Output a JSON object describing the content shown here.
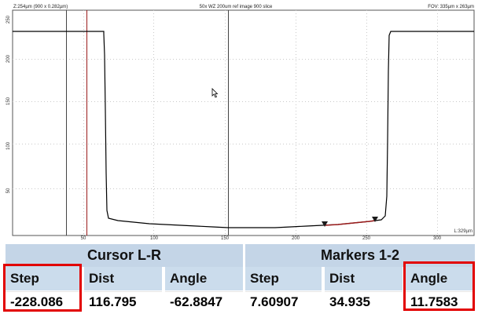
{
  "plot": {
    "header_left": "Z:254µm (900 x 0.282µm)",
    "header_center": "50x WZ 200um ref image 900 slice",
    "header_right": "FOV: 335µm x 263µm",
    "bottom_right_label": "L:329µm",
    "y_ticks": [
      "250",
      "200",
      "150",
      "100",
      "50"
    ],
    "x_ticks": [
      "50",
      "100",
      "150",
      "200",
      "250",
      "300"
    ],
    "pointer_icon": "cursor-arrow-icon",
    "marker_icon": "triangle-down-icon",
    "colors": {
      "profile": "#000000",
      "cursor_left": "#9a1b1b",
      "cursor_right": "#333333",
      "highlight": "#9a1b1b"
    }
  },
  "table": {
    "cursor_group": {
      "title": "Cursor L-R",
      "headers": [
        "Step",
        "Dist",
        "Angle"
      ],
      "values": [
        "-228.086",
        "116.795",
        "-62.8847"
      ]
    },
    "markers_group": {
      "title": "Markers 1-2",
      "headers": [
        "Step",
        "Dist",
        "Angle"
      ],
      "values": [
        "7.60907",
        "34.935",
        "11.7583"
      ]
    },
    "highlight_color": "#e20000"
  }
}
